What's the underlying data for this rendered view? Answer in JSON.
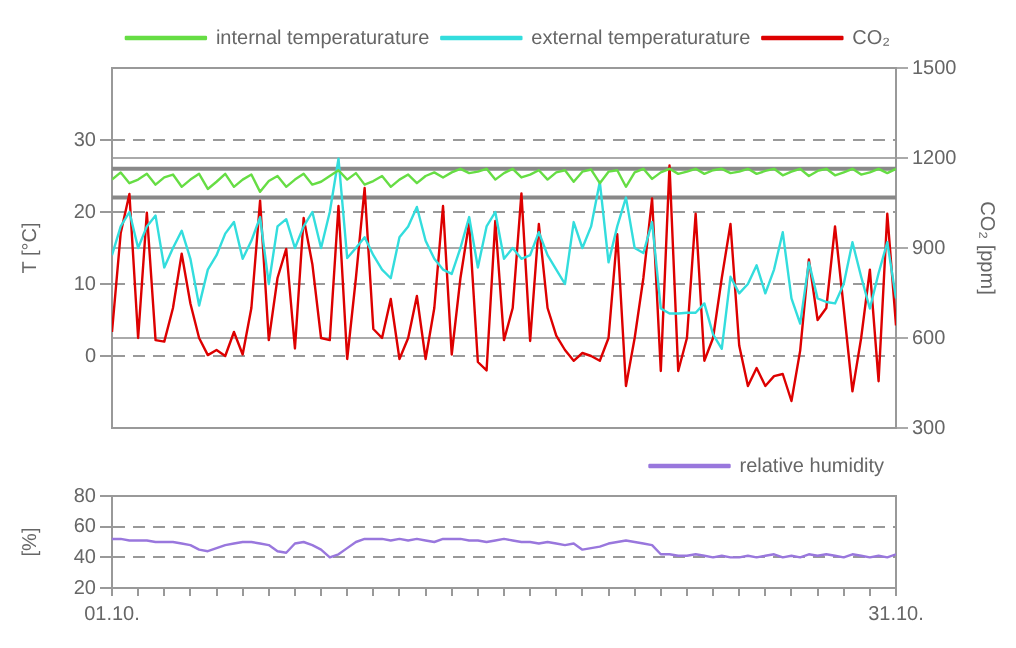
{
  "chart_data": [
    {
      "type": "line",
      "ylabel": "T [°C]",
      "y2label": "CO₂ [ppm]",
      "x": [
        "--10-01T00:00",
        "--10-01T08:00",
        "--10-01T16:00",
        "--10-02T00:00",
        "--10-02T08:00",
        "--10-02T16:00",
        "--10-03T00:00",
        "--10-03T08:00",
        "--10-03T16:00",
        "--10-04T00:00",
        "--10-04T08:00",
        "--10-04T16:00",
        "--10-05T00:00",
        "--10-05T08:00",
        "--10-05T16:00",
        "--10-06T00:00",
        "--10-06T08:00",
        "--10-06T16:00",
        "--10-07T00:00",
        "--10-07T08:00",
        "--10-07T16:00",
        "--10-08T00:00",
        "--10-08T08:00",
        "--10-08T16:00",
        "--10-09T00:00",
        "--10-09T08:00",
        "--10-09T16:00",
        "--10-10T00:00",
        "--10-10T08:00",
        "--10-10T16:00",
        "--10-11T00:00",
        "--10-11T08:00",
        "--10-11T16:00",
        "--10-12T00:00",
        "--10-12T08:00",
        "--10-12T16:00",
        "--10-13T00:00",
        "--10-13T08:00",
        "--10-13T16:00",
        "--10-14T00:00",
        "--10-14T08:00",
        "--10-14T16:00",
        "--10-15T00:00",
        "--10-15T08:00",
        "--10-15T16:00",
        "--10-16T00:00",
        "--10-16T08:00",
        "--10-16T16:00",
        "--10-17T00:00",
        "--10-17T08:00",
        "--10-17T16:00",
        "--10-18T00:00",
        "--10-18T08:00",
        "--10-18T16:00",
        "--10-19T00:00",
        "--10-19T08:00",
        "--10-19T16:00",
        "--10-20T00:00",
        "--10-20T08:00",
        "--10-20T16:00",
        "--10-21T00:00",
        "--10-21T08:00",
        "--10-21T16:00",
        "--10-22T00:00",
        "--10-22T08:00",
        "--10-22T16:00",
        "--10-23T00:00",
        "--10-23T08:00",
        "--10-23T16:00",
        "--10-24T00:00",
        "--10-24T08:00",
        "--10-24T16:00",
        "--10-25T00:00",
        "--10-25T08:00",
        "--10-25T16:00",
        "--10-26T00:00",
        "--10-26T08:00",
        "--10-26T16:00",
        "--10-27T00:00",
        "--10-27T08:00",
        "--10-27T16:00",
        "--10-28T00:00",
        "--10-28T08:00",
        "--10-28T16:00",
        "--10-29T00:00",
        "--10-29T08:00",
        "--10-29T16:00",
        "--10-30T00:00",
        "--10-30T08:00",
        "--10-30T16:00",
        "--10-31T00:00"
      ],
      "series": [
        {
          "name": "internal temperaturature",
          "color": "#66dd44",
          "values": [
            24.5,
            25.5,
            24,
            24.5,
            25.3,
            23.8,
            24.8,
            25.2,
            23.5,
            24.5,
            25.3,
            23.2,
            24.2,
            25.3,
            23.5,
            24.5,
            25.2,
            22.8,
            24.3,
            25,
            23.5,
            24.5,
            25.3,
            23.8,
            24.2,
            25,
            25.8,
            24.5,
            25.4,
            23.8,
            24.3,
            25,
            23.5,
            24.5,
            25.2,
            24,
            25,
            25.5,
            24.8,
            25.5,
            26,
            25.4,
            25.6,
            26,
            24.5,
            25.4,
            26,
            24.8,
            25.2,
            25.8,
            24.5,
            25.5,
            25.8,
            24.2,
            25.6,
            25.9,
            24,
            25.6,
            25.8,
            23.5,
            25.5,
            26,
            24.6,
            25.5,
            26,
            25.3,
            25.6,
            26,
            25.3,
            25.8,
            26,
            25.4,
            25.6,
            26,
            25.3,
            25.7,
            26,
            25.1,
            25.6,
            26,
            25,
            25.7,
            26,
            25.1,
            25.5,
            26,
            25.2,
            25.5,
            26,
            25.4,
            26
          ]
        },
        {
          "name": "external temperaturature",
          "color": "#33dddd",
          "values": [
            14,
            18,
            20,
            15,
            18,
            19.5,
            12.3,
            15,
            17.4,
            13.5,
            7,
            12,
            14,
            17,
            18.6,
            13.5,
            16,
            19.3,
            10,
            18,
            19,
            15,
            18,
            20,
            15,
            20,
            27.4,
            13.6,
            15,
            16.5,
            14,
            12,
            10.8,
            16.5,
            18,
            20.7,
            16,
            13.5,
            12,
            11.4,
            15,
            19.3,
            12.3,
            18,
            20,
            13.5,
            15,
            13.5,
            14,
            17.2,
            14,
            12,
            10,
            18.6,
            15,
            18,
            24.2,
            13,
            18,
            22,
            15,
            14.3,
            18.6,
            6.6,
            5.9,
            5.9,
            6,
            6,
            7.3,
            3,
            1,
            11,
            8.7,
            10,
            12.6,
            8.7,
            12,
            17.2,
            8,
            4.5,
            13,
            8,
            7.5,
            7.3,
            10,
            15.8,
            11,
            6.6,
            11.5,
            15.8,
            8
          ]
        },
        {
          "name": "CO₂",
          "color": "#dd0000",
          "axis": "y2",
          "values": [
            620,
            950,
            1080,
            600,
            1018,
            593,
            588,
            700,
            881,
            715,
            600,
            543,
            560,
            540,
            620,
            545,
            700,
            1058,
            593,
            800,
            897,
            565,
            1000,
            846,
            600,
            593,
            1040,
            530,
            800,
            1100,
            630,
            600,
            730,
            530,
            600,
            740,
            530,
            700,
            1040,
            545,
            800,
            985,
            520,
            492,
            990,
            593,
            700,
            1082,
            590,
            980,
            700,
            608,
            560,
            524,
            550,
            540,
            524,
            600,
            946,
            440,
            600,
            800,
            1065,
            490,
            1175,
            490,
            600,
            1014,
            524,
            600,
            800,
            980,
            575,
            440,
            500,
            440,
            473,
            480,
            390,
            558,
            862,
            660,
            700,
            972,
            700,
            422,
            600,
            828,
            456,
            1014,
            642
          ]
        }
      ],
      "xlim": [
        "--10-01",
        "--10-31"
      ],
      "ylim": [
        -10,
        40
      ],
      "yticks": [
        0,
        10,
        20,
        30
      ],
      "y2lim": [
        300,
        1500
      ],
      "y2ticks": [
        300,
        600,
        900,
        1200,
        1500
      ],
      "ref_lines": [
        {
          "axis": "y",
          "value": 22,
          "color": "#888888"
        },
        {
          "axis": "y",
          "value": 26,
          "color": "#888888"
        }
      ],
      "grid": "y",
      "legend": "top",
      "tick_labels": "y"
    },
    {
      "type": "line",
      "ylabel": "[%]",
      "x": [
        "--10-01T00:00",
        "--10-01T08:00",
        "--10-01T16:00",
        "--10-02T00:00",
        "--10-02T08:00",
        "--10-02T16:00",
        "--10-03T00:00",
        "--10-03T08:00",
        "--10-03T16:00",
        "--10-04T00:00",
        "--10-04T08:00",
        "--10-04T16:00",
        "--10-05T00:00",
        "--10-05T08:00",
        "--10-05T16:00",
        "--10-06T00:00",
        "--10-06T08:00",
        "--10-06T16:00",
        "--10-07T00:00",
        "--10-07T08:00",
        "--10-07T16:00",
        "--10-08T00:00",
        "--10-08T08:00",
        "--10-08T16:00",
        "--10-09T00:00",
        "--10-09T08:00",
        "--10-09T16:00",
        "--10-10T00:00",
        "--10-10T08:00",
        "--10-10T16:00",
        "--10-11T00:00",
        "--10-11T08:00",
        "--10-11T16:00",
        "--10-12T00:00",
        "--10-12T08:00",
        "--10-12T16:00",
        "--10-13T00:00",
        "--10-13T08:00",
        "--10-13T16:00",
        "--10-14T00:00",
        "--10-14T08:00",
        "--10-14T16:00",
        "--10-15T00:00",
        "--10-15T08:00",
        "--10-15T16:00",
        "--10-16T00:00",
        "--10-16T08:00",
        "--10-16T16:00",
        "--10-17T00:00",
        "--10-17T08:00",
        "--10-17T16:00",
        "--10-18T00:00",
        "--10-18T08:00",
        "--10-18T16:00",
        "--10-19T00:00",
        "--10-19T08:00",
        "--10-19T16:00",
        "--10-20T00:00",
        "--10-20T08:00",
        "--10-20T16:00",
        "--10-21T00:00",
        "--10-21T08:00",
        "--10-21T16:00",
        "--10-22T00:00",
        "--10-22T08:00",
        "--10-22T16:00",
        "--10-23T00:00",
        "--10-23T08:00",
        "--10-23T16:00",
        "--10-24T00:00",
        "--10-24T08:00",
        "--10-24T16:00",
        "--10-25T00:00",
        "--10-25T08:00",
        "--10-25T16:00",
        "--10-26T00:00",
        "--10-26T08:00",
        "--10-26T16:00",
        "--10-27T00:00",
        "--10-27T08:00",
        "--10-27T16:00",
        "--10-28T00:00",
        "--10-28T08:00",
        "--10-28T16:00",
        "--10-29T00:00",
        "--10-29T08:00",
        "--10-29T16:00",
        "--10-30T00:00",
        "--10-30T08:00",
        "--10-30T16:00",
        "--10-31T00:00"
      ],
      "series": [
        {
          "name": "relative humidity",
          "color": "#9977dd",
          "values": [
            52,
            52,
            51,
            51,
            51,
            50,
            50,
            50,
            49,
            48,
            45,
            44,
            46,
            48,
            49,
            50,
            50,
            49,
            48,
            44,
            43,
            49,
            50,
            48,
            45,
            40,
            42,
            46,
            50,
            52,
            52,
            52,
            51,
            52,
            51,
            52,
            51,
            50,
            52,
            52,
            52,
            51,
            51,
            50,
            51,
            52,
            51,
            50,
            50,
            49,
            50,
            49,
            48,
            49,
            45,
            46,
            47,
            49,
            50,
            51,
            50,
            49,
            48,
            42,
            42,
            41,
            41,
            42,
            41,
            40,
            41,
            40,
            40,
            41,
            40,
            41,
            42,
            40,
            41,
            40,
            42,
            41,
            42,
            41,
            40,
            42,
            41,
            40,
            41,
            40,
            42
          ]
        }
      ],
      "xlim": [
        "--10-01",
        "--10-31"
      ],
      "xticks": [
        {
          "value": "--10-01",
          "label": "01.10."
        },
        {
          "value": "--10-02",
          "label": null
        },
        {
          "value": "--10-03",
          "label": null
        },
        {
          "value": "--10-04",
          "label": null
        },
        {
          "value": "--10-05",
          "label": null
        },
        {
          "value": "--10-06",
          "label": null
        },
        {
          "value": "--10-07",
          "label": null
        },
        {
          "value": "--10-08",
          "label": null
        },
        {
          "value": "--10-09",
          "label": null
        },
        {
          "value": "--10-10",
          "label": null
        },
        {
          "value": "--10-11",
          "label": null
        },
        {
          "value": "--10-12",
          "label": null
        },
        {
          "value": "--10-13",
          "label": null
        },
        {
          "value": "--10-14",
          "label": null
        },
        {
          "value": "--10-15",
          "label": null
        },
        {
          "value": "--10-16",
          "label": null
        },
        {
          "value": "--10-17",
          "label": null
        },
        {
          "value": "--10-18",
          "label": null
        },
        {
          "value": "--10-19",
          "label": null
        },
        {
          "value": "--10-20",
          "label": null
        },
        {
          "value": "--10-21",
          "label": null
        },
        {
          "value": "--10-22",
          "label": null
        },
        {
          "value": "--10-23",
          "label": null
        },
        {
          "value": "--10-24",
          "label": null
        },
        {
          "value": "--10-25",
          "label": null
        },
        {
          "value": "--10-26",
          "label": null
        },
        {
          "value": "--10-27",
          "label": null
        },
        {
          "value": "--10-28",
          "label": null
        },
        {
          "value": "--10-29",
          "label": null
        },
        {
          "value": "--10-30",
          "label": null
        },
        {
          "value": "--10-31",
          "label": "31.10."
        }
      ],
      "ylim": [
        20,
        80
      ],
      "yticks": [
        20,
        40,
        60,
        80
      ],
      "grid": "y",
      "legend": "top right"
    }
  ]
}
